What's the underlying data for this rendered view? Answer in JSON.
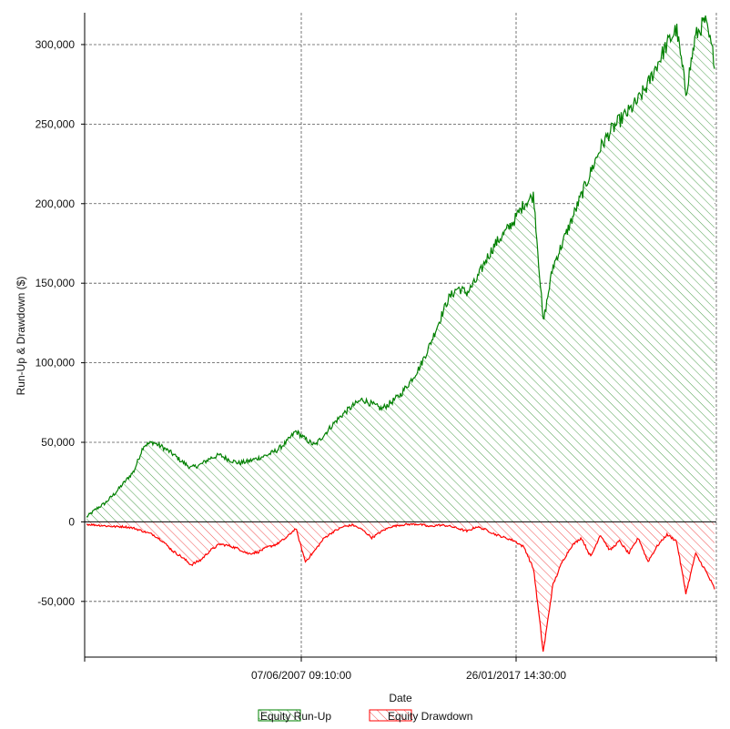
{
  "chart_data": {
    "type": "area",
    "title": "",
    "xlabel": "Date",
    "ylabel": "Run-Up & Drawdown ($)",
    "ylim": [
      -85000,
      320000
    ],
    "y_ticks": [
      -50000,
      0,
      50000,
      100000,
      150000,
      200000,
      250000,
      300000
    ],
    "y_tick_labels": [
      "-50,000",
      "0",
      "50,000",
      "100,000",
      "150,000",
      "200,000",
      "250,000",
      "300,000"
    ],
    "x_tick_labels": [
      "07/06/2007 09:10:00",
      "26/01/2017 14:30:00"
    ],
    "grid": true,
    "legend_position": "bottom",
    "colors": {
      "runup": "#008000",
      "drawdown": "#ff0000"
    },
    "series": [
      {
        "name": "Equity Run-Up",
        "values": [
          3000,
          8000,
          12000,
          18000,
          25000,
          32000,
          48000,
          50000,
          47000,
          43000,
          38000,
          34000,
          36000,
          40000,
          42000,
          39000,
          37000,
          38000,
          40000,
          42000,
          45000,
          50000,
          57000,
          52000,
          48000,
          55000,
          62000,
          68000,
          73000,
          77000,
          74000,
          71000,
          75000,
          80000,
          88000,
          97000,
          110000,
          125000,
          140000,
          147000,
          144000,
          152000,
          165000,
          175000,
          182000,
          190000,
          200000,
          205000,
          125000,
          160000,
          175000,
          190000,
          205000,
          220000,
          235000,
          245000,
          252000,
          258000,
          265000,
          275000,
          288000,
          300000,
          310000,
          270000,
          305000,
          315000,
          290000
        ]
      },
      {
        "name": "Equity Drawdown",
        "values": [
          -1500,
          -2000,
          -2500,
          -3000,
          -3000,
          -4000,
          -6000,
          -8000,
          -12000,
          -18000,
          -22000,
          -27000,
          -24000,
          -18000,
          -14000,
          -15000,
          -17000,
          -20000,
          -19000,
          -16000,
          -14000,
          -10000,
          -4000,
          -25000,
          -18000,
          -10000,
          -6000,
          -3000,
          -2000,
          -5000,
          -10000,
          -6000,
          -3000,
          -2000,
          -1500,
          -1500,
          -3000,
          -2000,
          -2500,
          -4000,
          -6000,
          -3000,
          -5000,
          -8000,
          -10000,
          -12000,
          -16000,
          -30000,
          -82000,
          -40000,
          -25000,
          -15000,
          -10000,
          -22000,
          -8000,
          -18000,
          -12000,
          -20000,
          -10000,
          -25000,
          -15000,
          -8000,
          -12000,
          -45000,
          -20000,
          -30000,
          -42000
        ]
      }
    ]
  },
  "legend": {
    "runup_label": "Equity Run-Up",
    "drawdown_label": "Equity Drawdown"
  }
}
